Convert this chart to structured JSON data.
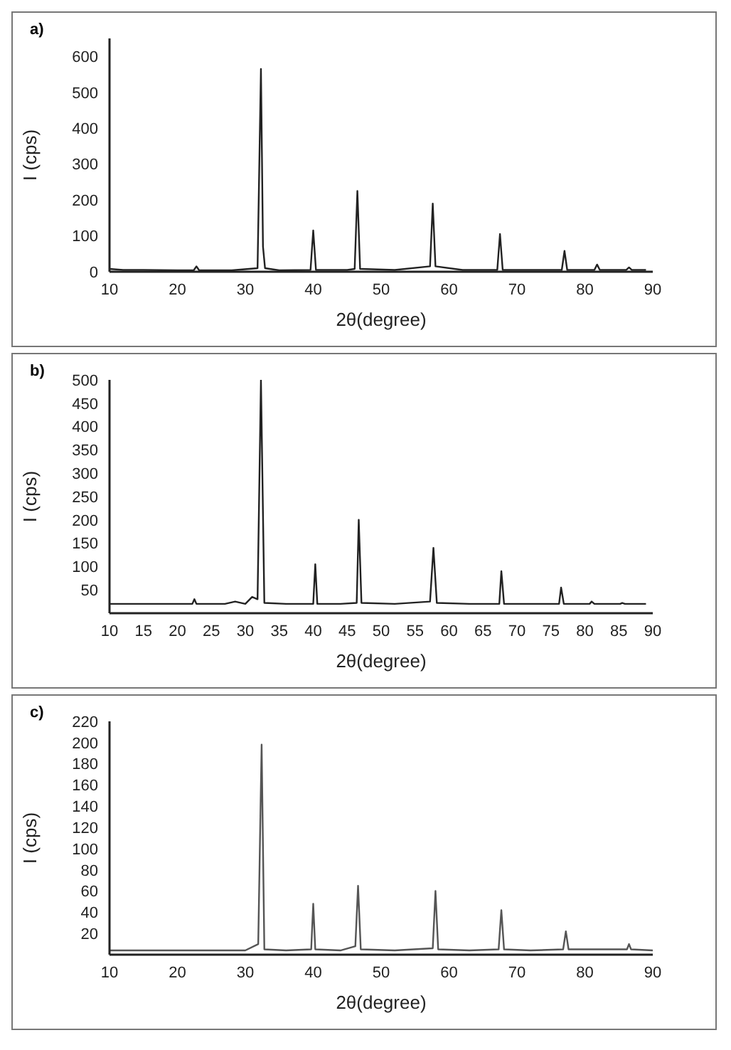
{
  "chart_data": [
    {
      "type": "line",
      "title": "a)",
      "xlabel": "2θ(degree)",
      "ylabel": "I (cps)",
      "color": "#222222",
      "xlim": [
        10,
        90
      ],
      "xticks": [
        10,
        20,
        30,
        40,
        50,
        60,
        70,
        80,
        90
      ],
      "ylim": [
        0,
        650
      ],
      "yticks": [
        0,
        100,
        200,
        300,
        400,
        500,
        600
      ],
      "x": [
        10,
        12,
        15,
        20,
        22.4,
        22.8,
        23.2,
        28,
        31.8,
        32.3,
        32.6,
        32.9,
        35,
        39.6,
        40,
        40.4,
        45,
        46.1,
        46.5,
        46.9,
        52,
        57.2,
        57.6,
        58,
        62,
        67.1,
        67.5,
        67.9,
        72,
        76.6,
        77,
        77.4,
        81.4,
        81.8,
        82.2,
        86.1,
        86.5,
        86.9,
        89
      ],
      "values": [
        8,
        5,
        5,
        4,
        4,
        15,
        4,
        4,
        10,
        565,
        70,
        10,
        4,
        5,
        115,
        5,
        5,
        8,
        225,
        8,
        5,
        15,
        190,
        15,
        5,
        5,
        105,
        5,
        5,
        5,
        58,
        5,
        5,
        20,
        5,
        5,
        12,
        5,
        5
      ]
    },
    {
      "type": "line",
      "title": "b)",
      "xlabel": "2θ(degree)",
      "ylabel": "I (cps)",
      "color": "#222222",
      "xlim": [
        10,
        90
      ],
      "xticks": [
        10,
        15,
        20,
        25,
        30,
        35,
        40,
        45,
        50,
        55,
        60,
        65,
        70,
        75,
        80,
        85,
        90
      ],
      "ylim": [
        0,
        500
      ],
      "yticks": [
        50,
        100,
        150,
        200,
        250,
        300,
        350,
        400,
        450,
        500
      ],
      "x": [
        10,
        15,
        20,
        22.2,
        22.5,
        22.8,
        27,
        28.5,
        30,
        31,
        31.8,
        32.3,
        32.8,
        36,
        40,
        40.3,
        40.6,
        44,
        46.4,
        46.7,
        47.1,
        52,
        57.2,
        57.7,
        58.2,
        63,
        67.4,
        67.7,
        68.1,
        72,
        76.2,
        76.5,
        76.9,
        80.7,
        81,
        81.4,
        85.2,
        85.5,
        85.9,
        89
      ],
      "values": [
        20,
        20,
        20,
        20,
        30,
        20,
        20,
        25,
        20,
        35,
        30,
        500,
        22,
        20,
        20,
        105,
        20,
        20,
        22,
        200,
        22,
        20,
        25,
        140,
        22,
        20,
        20,
        90,
        20,
        20,
        20,
        55,
        20,
        20,
        25,
        20,
        20,
        22,
        20,
        20
      ]
    },
    {
      "type": "line",
      "title": "c)",
      "xlabel": "2θ(degree)",
      "ylabel": "I (cps)",
      "color": "#555555",
      "xlim": [
        10,
        90
      ],
      "xticks": [
        10,
        20,
        30,
        40,
        50,
        60,
        70,
        80,
        90
      ],
      "ylim": [
        0,
        220
      ],
      "yticks": [
        20,
        40,
        60,
        80,
        100,
        120,
        140,
        160,
        180,
        200,
        220
      ],
      "x": [
        10,
        15,
        20,
        25,
        30,
        31.9,
        32.4,
        32.8,
        36,
        39.7,
        40,
        40.3,
        44,
        46.2,
        46.6,
        47,
        52,
        57.6,
        58,
        58.4,
        63,
        67.3,
        67.7,
        68.1,
        72,
        76.8,
        77.2,
        77.6,
        82,
        86.2,
        86.5,
        86.8,
        90
      ],
      "values": [
        4,
        4,
        4,
        4,
        4,
        10,
        198,
        5,
        4,
        5,
        48,
        5,
        4,
        8,
        65,
        5,
        4,
        6,
        60,
        5,
        4,
        5,
        42,
        5,
        4,
        5,
        22,
        5,
        5,
        5,
        10,
        5,
        4
      ]
    }
  ]
}
